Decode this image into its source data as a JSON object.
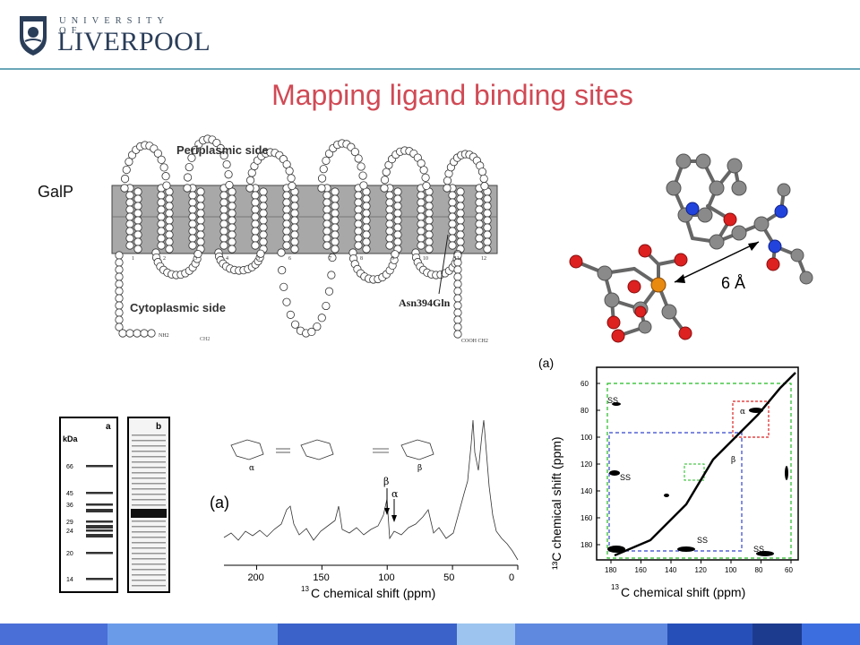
{
  "logo": {
    "top": "UNIVERSITY OF",
    "main": "LIVERPOOL"
  },
  "title": "Mapping ligand binding sites",
  "galp_label": "GalP",
  "topology": {
    "periplasmic": "Periplasmic side",
    "cytoplasmic": "Cytoplasmic side",
    "mutation": "Asn394Gln",
    "nh2": "NH2",
    "ch2": "CH2",
    "cooh": "COOH CH2",
    "helix_numbers": [
      "1",
      "2",
      "3",
      "4",
      "5",
      "6",
      "7",
      "8",
      "9",
      "10",
      "11",
      "12"
    ]
  },
  "molecule": {
    "distance": "6 Å"
  },
  "gel": {
    "lane_a": "a",
    "lane_b": "b",
    "unit": "kDa",
    "markers": [
      "66",
      "45",
      "36",
      "29",
      "24",
      "20",
      "14"
    ]
  },
  "nmr1d": {
    "panel": "(a)",
    "beta": "β",
    "alpha": "α",
    "ticks": [
      "200",
      "150",
      "100",
      "50",
      "0"
    ],
    "xlabel_sup": "13",
    "xlabel": "C chemical shift (ppm)",
    "anomer_alpha": "α",
    "anomer_beta": "β"
  },
  "nmr2d": {
    "panel": "(a)",
    "ylabel": "¹³C chemical shift (ppm)",
    "xlabel_sup": "13",
    "xlabel": "C chemical shift (ppm)",
    "yticks": [
      "60",
      "80",
      "100",
      "120",
      "140",
      "160",
      "180"
    ],
    "xticks": [
      "180",
      "160",
      "140",
      "120",
      "100",
      "80",
      "60"
    ],
    "labels": [
      "SS",
      "SS",
      "SS",
      "SS",
      "β",
      "α"
    ]
  },
  "footer_colors": [
    "#4a6fd6",
    "#6a9be8",
    "#3a62c8",
    "#9cc4ee",
    "#5f89de",
    "#2650b8",
    "#1d3b8e",
    "#3c6ee0"
  ]
}
